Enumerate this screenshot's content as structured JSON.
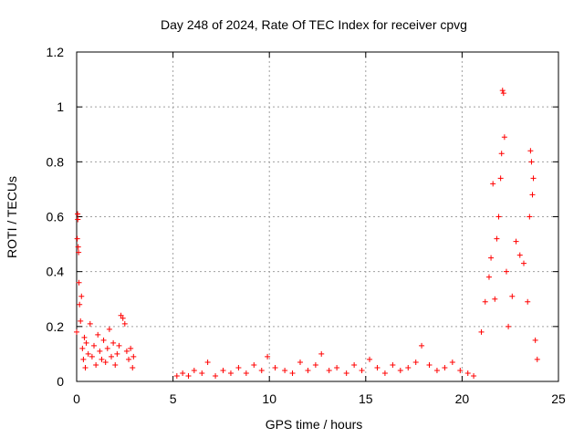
{
  "chart_data": {
    "type": "scatter",
    "title": "Day 248 of 2024, Rate Of TEC Index for receiver cpvg",
    "xlabel": "GPS time / hours",
    "ylabel": "ROTI / TECUs",
    "xlim": [
      0,
      25
    ],
    "ylim": [
      0,
      1.2
    ],
    "xticks": [
      0,
      5,
      10,
      15,
      20,
      25
    ],
    "xtick_labels": [
      "0",
      "5",
      "10",
      "15",
      "20",
      "25"
    ],
    "yticks": [
      0,
      0.2,
      0.4,
      0.6,
      0.8,
      1.0,
      1.2
    ],
    "ytick_labels": [
      "0",
      "0.2",
      "0.4",
      "0.6",
      "0.8",
      "1",
      "1.2"
    ],
    "grid": true,
    "marker": "plus",
    "color": "#ff0000",
    "series": [
      {
        "name": "ROTI",
        "points": [
          [
            0.0,
            0.18
          ],
          [
            0.03,
            0.52
          ],
          [
            0.05,
            0.61
          ],
          [
            0.06,
            0.59
          ],
          [
            0.08,
            0.49
          ],
          [
            0.1,
            0.47
          ],
          [
            0.12,
            0.36
          ],
          [
            0.15,
            0.28
          ],
          [
            0.2,
            0.22
          ],
          [
            0.25,
            0.31
          ],
          [
            0.3,
            0.12
          ],
          [
            0.35,
            0.08
          ],
          [
            0.4,
            0.16
          ],
          [
            0.45,
            0.05
          ],
          [
            0.5,
            0.14
          ],
          [
            0.6,
            0.1
          ],
          [
            0.7,
            0.21
          ],
          [
            0.8,
            0.09
          ],
          [
            0.9,
            0.13
          ],
          [
            1.0,
            0.06
          ],
          [
            1.1,
            0.17
          ],
          [
            1.2,
            0.11
          ],
          [
            1.3,
            0.08
          ],
          [
            1.4,
            0.15
          ],
          [
            1.5,
            0.07
          ],
          [
            1.6,
            0.12
          ],
          [
            1.7,
            0.19
          ],
          [
            1.8,
            0.09
          ],
          [
            1.9,
            0.14
          ],
          [
            2.0,
            0.06
          ],
          [
            2.1,
            0.1
          ],
          [
            2.2,
            0.13
          ],
          [
            2.3,
            0.24
          ],
          [
            2.4,
            0.23
          ],
          [
            2.5,
            0.21
          ],
          [
            2.6,
            0.11
          ],
          [
            2.7,
            0.08
          ],
          [
            2.8,
            0.12
          ],
          [
            2.9,
            0.05
          ],
          [
            2.95,
            0.09
          ],
          [
            5.2,
            0.02
          ],
          [
            5.5,
            0.03
          ],
          [
            5.8,
            0.02
          ],
          [
            6.1,
            0.04
          ],
          [
            6.5,
            0.03
          ],
          [
            6.8,
            0.07
          ],
          [
            7.2,
            0.02
          ],
          [
            7.6,
            0.04
          ],
          [
            8.0,
            0.03
          ],
          [
            8.4,
            0.05
          ],
          [
            8.8,
            0.03
          ],
          [
            9.2,
            0.06
          ],
          [
            9.6,
            0.04
          ],
          [
            9.9,
            0.09
          ],
          [
            10.3,
            0.05
          ],
          [
            10.8,
            0.04
          ],
          [
            11.2,
            0.03
          ],
          [
            11.6,
            0.07
          ],
          [
            12.0,
            0.04
          ],
          [
            12.4,
            0.06
          ],
          [
            12.7,
            0.1
          ],
          [
            13.1,
            0.04
          ],
          [
            13.5,
            0.05
          ],
          [
            14.0,
            0.03
          ],
          [
            14.4,
            0.06
          ],
          [
            14.8,
            0.04
          ],
          [
            15.2,
            0.08
          ],
          [
            15.6,
            0.05
          ],
          [
            16.0,
            0.03
          ],
          [
            16.4,
            0.06
          ],
          [
            16.8,
            0.04
          ],
          [
            17.2,
            0.05
          ],
          [
            17.6,
            0.07
          ],
          [
            17.9,
            0.13
          ],
          [
            18.3,
            0.06
          ],
          [
            18.7,
            0.04
          ],
          [
            19.1,
            0.05
          ],
          [
            19.5,
            0.07
          ],
          [
            19.9,
            0.04
          ],
          [
            20.3,
            0.03
          ],
          [
            20.6,
            0.02
          ],
          [
            21.0,
            0.18
          ],
          [
            21.2,
            0.29
          ],
          [
            21.4,
            0.38
          ],
          [
            21.5,
            0.45
          ],
          [
            21.6,
            0.72
          ],
          [
            21.7,
            0.3
          ],
          [
            21.8,
            0.52
          ],
          [
            21.9,
            0.6
          ],
          [
            22.0,
            0.74
          ],
          [
            22.05,
            0.83
          ],
          [
            22.1,
            1.06
          ],
          [
            22.15,
            1.05
          ],
          [
            22.2,
            0.89
          ],
          [
            22.3,
            0.4
          ],
          [
            22.4,
            0.2
          ],
          [
            22.6,
            0.31
          ],
          [
            22.8,
            0.51
          ],
          [
            23.0,
            0.46
          ],
          [
            23.2,
            0.43
          ],
          [
            23.4,
            0.29
          ],
          [
            23.5,
            0.6
          ],
          [
            23.55,
            0.84
          ],
          [
            23.6,
            0.8
          ],
          [
            23.65,
            0.68
          ],
          [
            23.7,
            0.74
          ],
          [
            23.8,
            0.15
          ],
          [
            23.9,
            0.08
          ]
        ]
      }
    ]
  }
}
